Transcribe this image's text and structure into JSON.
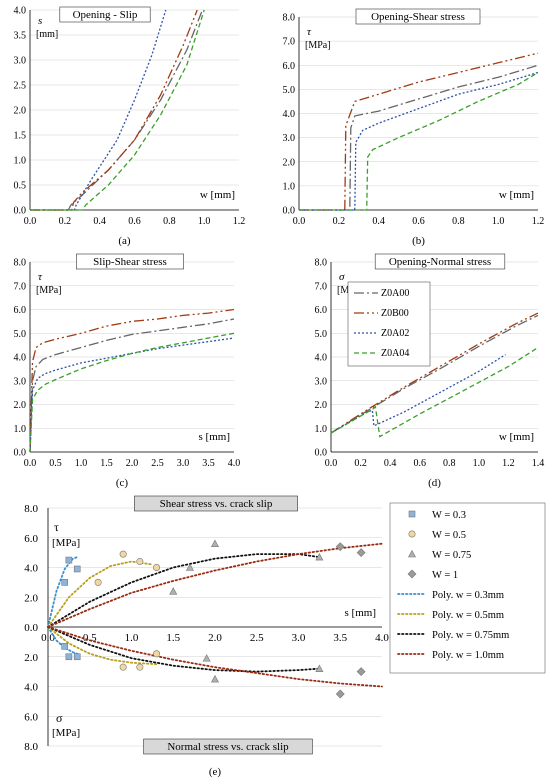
{
  "chart_data": [
    {
      "id": "a",
      "type": "line",
      "panel_label": "(a)",
      "title": "Opening - Slip",
      "xlabel": "w [mm]",
      "ylabel_symbol": "s",
      "ylabel_unit": "[mm]",
      "xlim": [
        0,
        1.2
      ],
      "ylim": [
        0,
        4.0
      ],
      "x_ticks": [
        "0.0",
        "0.2",
        "0.4",
        "0.6",
        "0.8",
        "1.0",
        "1.2"
      ],
      "y_ticks": [
        "0.0",
        "0.5",
        "1.0",
        "1.5",
        "2.0",
        "2.5",
        "3.0",
        "3.5",
        "4.0"
      ],
      "series": [
        {
          "key": "Z0A00",
          "x": [
            0,
            0.22,
            0.235,
            0.3,
            0.45,
            0.6,
            0.75,
            0.9,
            0.99
          ],
          "y": [
            0,
            0,
            0.1,
            0.3,
            0.8,
            1.4,
            2.2,
            3.2,
            4.0
          ]
        },
        {
          "key": "Z0B00",
          "x": [
            0,
            0.24,
            0.25,
            0.3,
            0.45,
            0.6,
            0.75,
            0.88,
            0.96
          ],
          "y": [
            0,
            0,
            0.15,
            0.35,
            0.8,
            1.4,
            2.3,
            3.3,
            4.0
          ]
        },
        {
          "key": "Z0A02",
          "x": [
            0,
            0.255,
            0.265,
            0.35,
            0.5,
            0.6,
            0.7,
            0.78
          ],
          "y": [
            0,
            0,
            0.1,
            0.6,
            1.4,
            2.2,
            3.1,
            4.0
          ]
        },
        {
          "key": "Z0A04",
          "x": [
            0,
            0.3,
            0.32,
            0.45,
            0.6,
            0.75,
            0.9,
            1.0
          ],
          "y": [
            0,
            0,
            0.1,
            0.5,
            1.1,
            1.9,
            2.9,
            4.0
          ]
        }
      ]
    },
    {
      "id": "b",
      "type": "line",
      "panel_label": "(b)",
      "title": "Opening-Shear stress",
      "xlabel": "w [mm]",
      "ylabel_symbol": "τ",
      "ylabel_unit": "[MPa]",
      "xlim": [
        0,
        1.2
      ],
      "ylim": [
        0,
        8.0
      ],
      "x_ticks": [
        "0.0",
        "0.2",
        "0.4",
        "0.6",
        "0.8",
        "1.0",
        "1.2"
      ],
      "y_ticks": [
        "0.0",
        "1.0",
        "2.0",
        "3.0",
        "4.0",
        "5.0",
        "6.0",
        "7.0",
        "8.0"
      ],
      "series": [
        {
          "key": "Z0A00",
          "x": [
            0,
            0.255,
            0.26,
            0.28,
            0.4,
            0.6,
            0.8,
            1.0,
            1.2
          ],
          "y": [
            0,
            0,
            3.4,
            3.9,
            4.1,
            4.6,
            5.1,
            5.5,
            6.0
          ]
        },
        {
          "key": "Z0B00",
          "x": [
            0,
            0.23,
            0.235,
            0.28,
            0.4,
            0.6,
            0.8,
            1.0,
            1.2
          ],
          "y": [
            0,
            0,
            3.5,
            4.5,
            4.8,
            5.3,
            5.7,
            6.1,
            6.5
          ]
        },
        {
          "key": "Z0A02",
          "x": [
            0,
            0.28,
            0.285,
            0.32,
            0.4,
            0.6,
            0.8,
            1.0,
            1.2
          ],
          "y": [
            0,
            0,
            2.8,
            3.3,
            3.6,
            4.2,
            4.8,
            5.2,
            5.7
          ]
        },
        {
          "key": "Z0A04",
          "x": [
            0,
            0.34,
            0.345,
            0.37,
            0.5,
            0.7,
            0.9,
            1.1,
            1.2
          ],
          "y": [
            0,
            0,
            2.2,
            2.5,
            3.0,
            3.7,
            4.5,
            5.2,
            5.7
          ]
        }
      ]
    },
    {
      "id": "c",
      "type": "line",
      "panel_label": "(c)",
      "title": "Slip-Shear stress",
      "xlabel": "s [mm]",
      "ylabel_symbol": "τ",
      "ylabel_unit": "[MPa]",
      "xlim": [
        0,
        4.0
      ],
      "ylim": [
        0,
        8.0
      ],
      "x_ticks": [
        "0.0",
        "0.5",
        "1.0",
        "1.5",
        "2.0",
        "2.5",
        "3.0",
        "3.5",
        "4.0"
      ],
      "y_ticks": [
        "0.0",
        "1.0",
        "2.0",
        "3.0",
        "4.0",
        "5.0",
        "6.0",
        "7.0",
        "8.0"
      ],
      "series": [
        {
          "key": "Z0A00",
          "x": [
            0,
            0.05,
            0.12,
            0.25,
            0.5,
            1.0,
            1.5,
            2.0,
            2.5,
            3.0,
            3.5,
            4.0
          ],
          "y": [
            0,
            3.0,
            3.6,
            3.9,
            4.1,
            4.4,
            4.7,
            4.95,
            5.1,
            5.25,
            5.4,
            5.6
          ]
        },
        {
          "key": "Z0B00",
          "x": [
            0,
            0.05,
            0.12,
            0.25,
            0.5,
            1.0,
            1.5,
            2.0,
            2.5,
            3.0,
            3.5,
            4.0
          ],
          "y": [
            0,
            3.8,
            4.4,
            4.6,
            4.75,
            5.0,
            5.3,
            5.5,
            5.6,
            5.75,
            5.85,
            6.0
          ]
        },
        {
          "key": "Z0A02",
          "x": [
            0,
            0.05,
            0.15,
            0.3,
            0.5,
            1.0,
            1.5,
            2.0,
            2.5,
            3.0,
            3.5,
            4.0
          ],
          "y": [
            0,
            2.6,
            3.1,
            3.3,
            3.45,
            3.75,
            3.95,
            4.15,
            4.35,
            4.5,
            4.65,
            4.8
          ]
        },
        {
          "key": "Z0A04",
          "x": [
            0,
            0.05,
            0.15,
            0.3,
            0.5,
            1.0,
            1.5,
            2.0,
            2.5,
            3.0,
            3.5,
            4.0
          ],
          "y": [
            0,
            2.2,
            2.6,
            2.85,
            3.05,
            3.5,
            3.85,
            4.15,
            4.4,
            4.6,
            4.8,
            5.0
          ]
        }
      ]
    },
    {
      "id": "d",
      "type": "line",
      "panel_label": "(d)",
      "title": "Opening-Normal stress",
      "xlabel": "w [mm]",
      "ylabel_symbol": "σ",
      "ylabel_unit": "[MPa]",
      "xlim": [
        0,
        1.4
      ],
      "ylim": [
        0,
        8.0
      ],
      "x_ticks": [
        "0.0",
        "0.2",
        "0.4",
        "0.6",
        "0.8",
        "1.0",
        "1.2",
        "1.4"
      ],
      "y_ticks": [
        "0.0",
        "1.0",
        "2.0",
        "3.0",
        "4.0",
        "5.0",
        "6.0",
        "7.0",
        "8.0"
      ],
      "legend": [
        "Z0A00",
        "Z0B00",
        "Z0A02",
        "Z0A04"
      ],
      "series": [
        {
          "key": "Z0A00",
          "x": [
            0,
            0.25,
            0.5,
            0.75,
            1.0,
            1.25,
            1.4
          ],
          "y": [
            0.8,
            1.75,
            2.7,
            3.55,
            4.45,
            5.3,
            5.75
          ]
        },
        {
          "key": "Z0B00",
          "x": [
            0,
            0.25,
            0.5,
            0.75,
            1.0,
            1.25,
            1.4
          ],
          "y": [
            0.8,
            1.8,
            2.75,
            3.65,
            4.55,
            5.4,
            5.85
          ]
        },
        {
          "key": "Z0A02",
          "x": [
            0,
            0.25,
            0.28,
            0.29,
            0.5,
            0.75,
            1.0,
            1.18
          ],
          "y": [
            0.8,
            1.7,
            1.75,
            1.1,
            1.7,
            2.55,
            3.4,
            4.1
          ]
        },
        {
          "key": "Z0A04",
          "x": [
            0,
            0.28,
            0.3,
            0.33,
            0.6,
            0.9,
            1.2,
            1.4
          ],
          "y": [
            0.8,
            1.8,
            1.9,
            0.65,
            1.6,
            2.6,
            3.6,
            4.4
          ]
        }
      ]
    },
    {
      "id": "e",
      "type": "scatter",
      "panel_label": "(e)",
      "title_top": "Shear stress vs. crack slip",
      "title_bottom": "Normal stress vs. crack slip",
      "xlabel": "s [mm]",
      "tau_symbol": "τ",
      "sigma_symbol": "σ",
      "unit": "[MPa]",
      "xlim": [
        0,
        4.0
      ],
      "ylim": [
        -8.0,
        8.0
      ],
      "x_ticks": [
        "0.0",
        "0.5",
        "1.0",
        "1.5",
        "2.0",
        "2.5",
        "3.0",
        "3.5",
        "4.0"
      ],
      "y_ticks": [
        "8.0",
        "6.0",
        "4.0",
        "2.0",
        "0.0",
        "2.0",
        "4.0",
        "6.0",
        "8.0"
      ],
      "legend": [
        "W = 0.3",
        "W = 0.5",
        "W = 0.75",
        "W = 1",
        "Poly. w = 0.3mm",
        "Poly. w = 0.5mm",
        "Poly. w = 0.75mm",
        "Poly. w = 1.0mm"
      ],
      "point_series": [
        {
          "name": "W = 0.3",
          "marker": "square",
          "x": [
            0.2,
            0.25,
            0.35,
            0.2,
            0.25,
            0.35
          ],
          "y": [
            3.0,
            4.5,
            3.9,
            -1.3,
            -2.0,
            -2.0
          ]
        },
        {
          "name": "W = 0.5",
          "marker": "circle",
          "x": [
            0.6,
            0.9,
            1.1,
            1.3,
            0.9,
            1.1,
            1.3
          ],
          "y": [
            3.0,
            4.9,
            4.4,
            4.0,
            -2.7,
            -2.7,
            -1.8
          ]
        },
        {
          "name": "W = 0.75",
          "marker": "triangle",
          "x": [
            1.5,
            1.7,
            2.0,
            3.25,
            1.9,
            2.0,
            3.25
          ],
          "y": [
            2.4,
            4.0,
            5.6,
            4.7,
            -2.1,
            -3.5,
            -2.8
          ]
        },
        {
          "name": "W = 1",
          "marker": "diamond",
          "x": [
            3.5,
            3.75,
            3.5,
            3.75
          ],
          "y": [
            5.4,
            5.0,
            -4.5,
            -3.0
          ]
        }
      ],
      "trend_series": [
        {
          "name": "Poly. w = 0.3mm",
          "color": "#3a8fd0",
          "upper": {
            "x": [
              0,
              0.1,
              0.2,
              0.3,
              0.35
            ],
            "y": [
              0,
              2.4,
              3.9,
              4.6,
              4.7
            ]
          },
          "lower": {
            "x": [
              0,
              0.1,
              0.2,
              0.3,
              0.35
            ],
            "y": [
              0,
              -0.9,
              -1.4,
              -1.7,
              -1.8
            ]
          }
        },
        {
          "name": "Poly. w = 0.5mm",
          "color": "#b8a01a",
          "upper": {
            "x": [
              0,
              0.25,
              0.5,
              0.75,
              1.0,
              1.25
            ],
            "y": [
              0,
              2.0,
              3.3,
              4.1,
              4.4,
              4.2
            ]
          },
          "lower": {
            "x": [
              0,
              0.25,
              0.5,
              0.75,
              1.0,
              1.3
            ],
            "y": [
              0,
              -1.1,
              -1.8,
              -2.2,
              -2.4,
              -2.5
            ]
          }
        },
        {
          "name": "Poly. w = 0.75mm",
          "color": "#111111",
          "upper": {
            "x": [
              0,
              0.5,
              1.0,
              1.5,
              2.0,
              2.5,
              3.0,
              3.25
            ],
            "y": [
              0,
              1.7,
              3.0,
              4.0,
              4.6,
              4.9,
              4.9,
              4.7
            ]
          },
          "lower": {
            "x": [
              0,
              0.5,
              1.0,
              1.5,
              2.0,
              2.5,
              3.0,
              3.25
            ],
            "y": [
              0,
              -1.2,
              -2.1,
              -2.6,
              -2.9,
              -3.0,
              -2.9,
              -2.8
            ]
          }
        },
        {
          "name": "Poly. w = 1.0mm",
          "color": "#9a2a12",
          "upper": {
            "x": [
              0,
              0.5,
              1.0,
              1.5,
              2.0,
              2.5,
              3.0,
              3.5,
              4.0
            ],
            "y": [
              0,
              1.2,
              2.3,
              3.1,
              3.8,
              4.4,
              4.9,
              5.3,
              5.6
            ]
          },
          "lower": {
            "x": [
              0,
              0.5,
              1.0,
              1.5,
              2.0,
              2.5,
              3.0,
              3.5,
              4.0
            ],
            "y": [
              0,
              -0.9,
              -1.6,
              -2.2,
              -2.7,
              -3.1,
              -3.5,
              -3.8,
              -4.0
            ]
          }
        }
      ]
    }
  ],
  "series_styles": {
    "Z0A00": {
      "color": "#666666",
      "dash": "10,3,2,3"
    },
    "Z0B00": {
      "color": "#a23a12",
      "dash": "10,3,2,3,2,3"
    },
    "Z0A02": {
      "color": "#2d52a8",
      "dash": "2,2"
    },
    "Z0A04": {
      "color": "#3aa02a",
      "dash": "5,3"
    }
  },
  "marker_colors": {
    "square": "#8fb2d8",
    "circle": "#f2d8a0",
    "triangle": "#b0b0b0",
    "diamond": "#9a9a9a"
  }
}
